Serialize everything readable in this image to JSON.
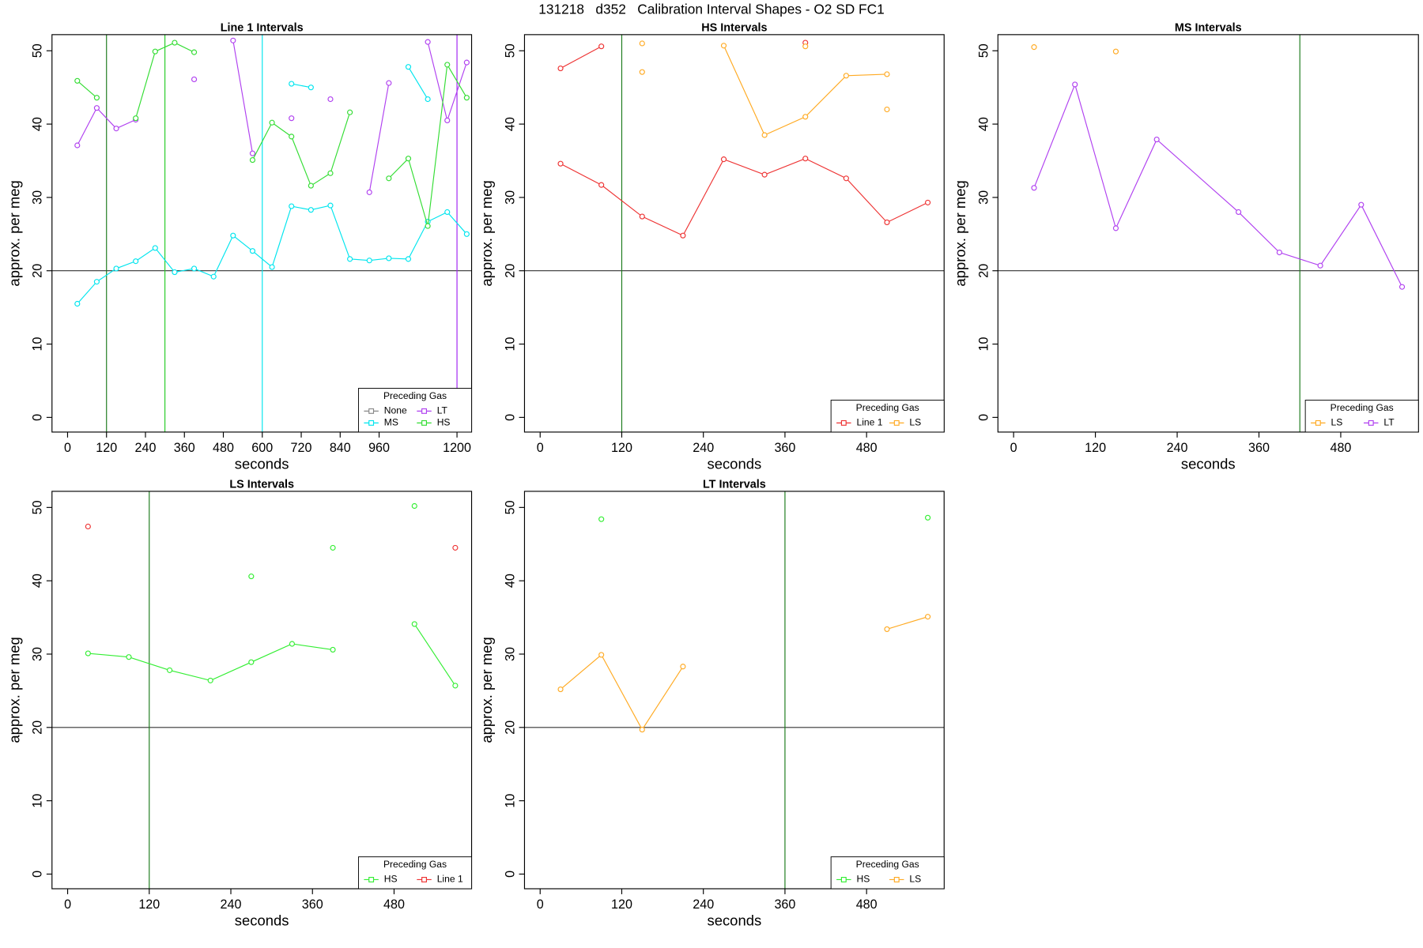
{
  "title": "131218   d352   Calibration Interval Shapes - O2 SD FC1",
  "chart_data": [
    {
      "type": "line",
      "title": "Line 1 Intervals",
      "xlabel": "seconds",
      "ylabel": "approx. per meg",
      "x": [
        30,
        90,
        150,
        210,
        270,
        330,
        390,
        450,
        510,
        570,
        630,
        690,
        750,
        810,
        870,
        930,
        990,
        1050,
        1110,
        1170,
        1230
      ],
      "xlim": [
        -48,
        1245
      ],
      "xticks": [
        0,
        120,
        240,
        360,
        480,
        600,
        720,
        840,
        960,
        1200
      ],
      "ylim": [
        -2,
        52.2
      ],
      "yticks": [
        0,
        10,
        20,
        30,
        40,
        50
      ],
      "hline": 20,
      "vlines": [
        {
          "x": 120,
          "color": "#1a7a1a"
        },
        {
          "x": 300,
          "color": "#22cc22"
        },
        {
          "x": 600,
          "color": "#00e5ee"
        },
        {
          "x": 1200,
          "color": "#a020f0"
        }
      ],
      "legend": {
        "title": "Preceding Gas",
        "loc": "bottom right"
      },
      "series": [
        {
          "name": "None",
          "color": "#888888",
          "values": [
            null,
            null,
            null,
            null,
            null,
            null,
            null,
            null,
            null,
            null,
            null,
            null,
            null,
            null,
            null,
            null,
            null,
            null,
            null,
            null,
            null
          ]
        },
        {
          "name": "MS",
          "color": "#00e5ee",
          "values": [
            15.5,
            18.5,
            20.3,
            21.3,
            23.1,
            19.8,
            20.3,
            19.2,
            24.8,
            22.7,
            20.5,
            28.8,
            28.3,
            28.9,
            21.6,
            21.4,
            21.7,
            21.6,
            26.7,
            28.0,
            25.0
          ]
        },
        {
          "name": "LT",
          "color": "#b040f0",
          "values": [
            37.1,
            42.2,
            39.4,
            40.6,
            null,
            null,
            46.1,
            null,
            51.4,
            36.0,
            null,
            40.8,
            null,
            43.4,
            null,
            30.7,
            45.6,
            null,
            51.2,
            40.5,
            48.4
          ]
        },
        {
          "name": "HS",
          "color": "#33dd33",
          "values": [
            45.9,
            43.6,
            null,
            40.8,
            49.9,
            51.1,
            49.8,
            null,
            null,
            35.1,
            40.2,
            38.3,
            31.6,
            33.3,
            41.6,
            null,
            32.6,
            35.3,
            26.1,
            48.1,
            43.6
          ]
        },
        {
          "name": "MS",
          "color": "#00e5ee",
          "values": [
            null,
            null,
            null,
            null,
            null,
            null,
            null,
            null,
            null,
            null,
            null,
            45.5,
            45.0,
            null,
            null,
            null,
            null,
            47.8,
            43.4,
            null,
            null
          ]
        }
      ]
    },
    {
      "type": "line",
      "title": "HS Intervals",
      "xlabel": "seconds",
      "ylabel": "approx. per meg",
      "x": [
        30,
        90,
        150,
        210,
        270,
        330,
        390,
        450,
        510,
        570
      ],
      "xlim": [
        -23,
        594
      ],
      "xticks": [
        0,
        120,
        240,
        360,
        480
      ],
      "ylim": [
        -2,
        52.2
      ],
      "yticks": [
        0,
        10,
        20,
        30,
        40,
        50
      ],
      "hline": 20,
      "vlines": [
        {
          "x": 120,
          "color": "#1a7a1a"
        }
      ],
      "legend": {
        "title": "Preceding Gas",
        "loc": "bottom right"
      },
      "series": [
        {
          "name": "Line 1",
          "color": "#ee3333",
          "values": [
            34.6,
            31.7,
            27.4,
            24.8,
            35.2,
            33.1,
            35.3,
            32.6,
            26.6,
            29.3
          ]
        },
        {
          "name": "LS",
          "color": "#ffaa22",
          "values": [
            null,
            null,
            47.1,
            null,
            50.7,
            38.5,
            41.0,
            46.6,
            46.8,
            null
          ]
        },
        {
          "name": "Line 1",
          "color": "#ee3333",
          "values": [
            47.6,
            50.6,
            null,
            null,
            null,
            null,
            51.1,
            null,
            null,
            null
          ]
        },
        {
          "name": "LS",
          "color": "#ffaa22",
          "values": [
            null,
            null,
            51.0,
            null,
            null,
            null,
            50.6,
            null,
            42.0,
            null
          ]
        }
      ]
    },
    {
      "type": "line",
      "title": "MS Intervals",
      "xlabel": "seconds",
      "ylabel": "approx. per meg",
      "x": [
        30,
        90,
        150,
        210,
        330,
        390,
        450,
        510,
        570
      ],
      "xlim": [
        -23,
        594
      ],
      "xticks": [
        0,
        120,
        240,
        360,
        480
      ],
      "ylim": [
        -2,
        52.2
      ],
      "yticks": [
        0,
        10,
        20,
        30,
        40,
        50
      ],
      "hline": 20,
      "vlines": [
        {
          "x": 420,
          "color": "#1a7a1a"
        }
      ],
      "legend": {
        "title": "Preceding Gas",
        "loc": "bottom right"
      },
      "series": [
        {
          "name": "LS",
          "color": "#ffaa22",
          "values": [
            50.5,
            null,
            49.9,
            null,
            null,
            null,
            null,
            null,
            null
          ]
        },
        {
          "name": "LT",
          "color": "#b040f0",
          "values": [
            31.3,
            45.4,
            25.8,
            37.9,
            28.0,
            22.5,
            20.7,
            29.0,
            17.8
          ]
        }
      ]
    },
    {
      "type": "line",
      "title": "LS Intervals",
      "xlabel": "seconds",
      "ylabel": "approx. per meg",
      "x": [
        30,
        90,
        150,
        210,
        270,
        330,
        390,
        450,
        510,
        570
      ],
      "xlim": [
        -23,
        594
      ],
      "xticks": [
        0,
        120,
        240,
        360,
        480
      ],
      "ylim": [
        -2,
        52.2
      ],
      "yticks": [
        0,
        10,
        20,
        30,
        40,
        50
      ],
      "hline": 20,
      "vlines": [
        {
          "x": 120,
          "color": "#1a7a1a"
        }
      ],
      "legend": {
        "title": "Preceding Gas",
        "loc": "bottom right"
      },
      "series": [
        {
          "name": "HS",
          "color": "#33ee33",
          "values": [
            30.1,
            29.6,
            27.8,
            26.4,
            28.9,
            31.4,
            30.6,
            null,
            34.1,
            25.7
          ]
        },
        {
          "name": "Line 1",
          "color": "#ee3333",
          "values": [
            47.4,
            null,
            null,
            null,
            null,
            null,
            null,
            null,
            null,
            44.5
          ]
        },
        {
          "name": "HS",
          "color": "#33ee33",
          "values": [
            null,
            null,
            null,
            null,
            40.6,
            null,
            44.5,
            null,
            50.2,
            null
          ]
        }
      ]
    },
    {
      "type": "line",
      "title": "LT Intervals",
      "xlabel": "seconds",
      "ylabel": "approx. per meg",
      "x": [
        30,
        90,
        150,
        210,
        270,
        330,
        390,
        450,
        510,
        570
      ],
      "xlim": [
        -23,
        594
      ],
      "xticks": [
        0,
        120,
        240,
        360,
        480
      ],
      "ylim": [
        -2,
        52.2
      ],
      "yticks": [
        0,
        10,
        20,
        30,
        40,
        50
      ],
      "hline": 20,
      "vlines": [
        {
          "x": 360,
          "color": "#1a7a1a"
        }
      ],
      "legend": {
        "title": "Preceding Gas",
        "loc": "bottom right"
      },
      "series": [
        {
          "name": "HS",
          "color": "#33ee33",
          "values": [
            null,
            48.4,
            null,
            null,
            null,
            null,
            null,
            null,
            null,
            48.6
          ]
        },
        {
          "name": "LS",
          "color": "#ffaa22",
          "values": [
            25.2,
            29.9,
            19.7,
            28.3,
            null,
            null,
            null,
            null,
            33.4,
            35.1
          ]
        }
      ]
    }
  ]
}
